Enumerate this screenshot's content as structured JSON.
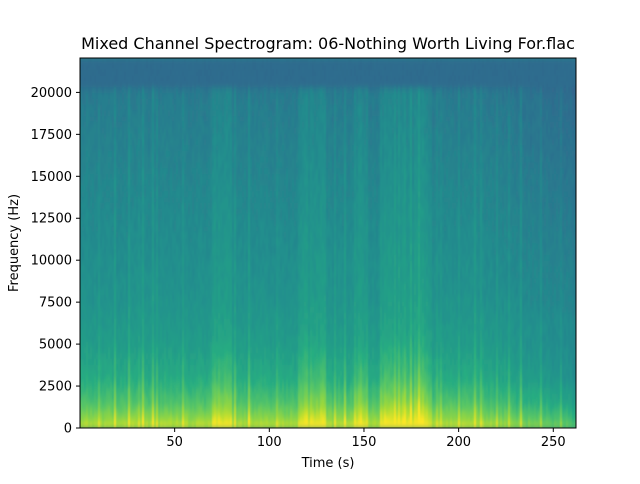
{
  "chart_data": {
    "type": "heatmap",
    "title": "Mixed Channel Spectrogram: 06-Nothing Worth Living For.flac",
    "xlabel": "Time (s)",
    "ylabel": "Frequency (Hz)",
    "xlim": [
      0,
      262
    ],
    "ylim": [
      0,
      22050
    ],
    "x_ticks": [
      50,
      100,
      150,
      200,
      250
    ],
    "y_ticks": [
      0,
      2500,
      5000,
      7500,
      10000,
      12500,
      15000,
      17500,
      20000
    ],
    "colormap": "viridis",
    "colorbar": false,
    "grid": false,
    "spectrum_summary": {
      "frequency_profile_hz": [
        {
          "freq": 0,
          "intensity": 0.92
        },
        {
          "freq": 500,
          "intensity": 0.82
        },
        {
          "freq": 1500,
          "intensity": 0.7
        },
        {
          "freq": 3000,
          "intensity": 0.6
        },
        {
          "freq": 5000,
          "intensity": 0.54
        },
        {
          "freq": 8000,
          "intensity": 0.5
        },
        {
          "freq": 12000,
          "intensity": 0.47
        },
        {
          "freq": 16000,
          "intensity": 0.44
        },
        {
          "freq": 20000,
          "intensity": 0.41
        },
        {
          "freq": 20500,
          "intensity": 0.36
        },
        {
          "freq": 22050,
          "intensity": 0.36
        }
      ],
      "loud_sections_s": [
        [
          70,
          80
        ],
        [
          115,
          130
        ],
        [
          145,
          152
        ],
        [
          160,
          185
        ]
      ],
      "fade_out_start_s": 210,
      "track_end_s": 262
    }
  }
}
